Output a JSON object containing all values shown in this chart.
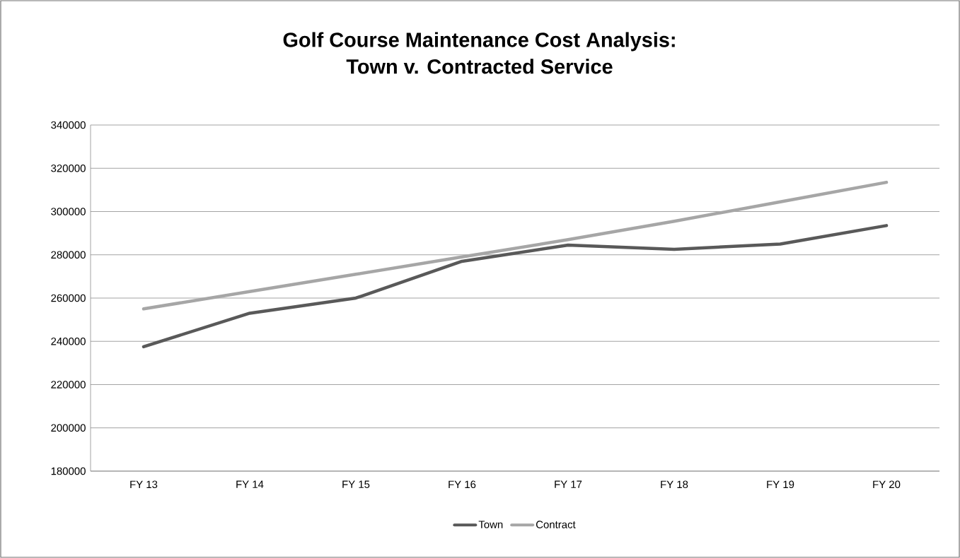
{
  "chart_data": {
    "type": "line",
    "title": "Golf Course Maintenance Cost Analysis:\nTown v. Contracted Service",
    "categories": [
      "FY 13",
      "FY 14",
      "FY 15",
      "FY 16",
      "FY 17",
      "FY 18",
      "FY 19",
      "FY 20"
    ],
    "series": [
      {
        "name": "Town",
        "color": "#595959",
        "values": [
          237500,
          253000,
          260000,
          277000,
          284500,
          282500,
          285000,
          293500
        ]
      },
      {
        "name": "Contract",
        "color": "#a6a6a6",
        "values": [
          255000,
          263000,
          271000,
          279000,
          287000,
          295500,
          304500,
          313500
        ]
      }
    ],
    "ylim": [
      180000,
      340000
    ],
    "yticks": [
      180000,
      200000,
      220000,
      240000,
      260000,
      280000,
      300000,
      320000,
      340000
    ],
    "grid": "y",
    "legend": "bottom",
    "marker": "none",
    "line_style": "solid"
  }
}
